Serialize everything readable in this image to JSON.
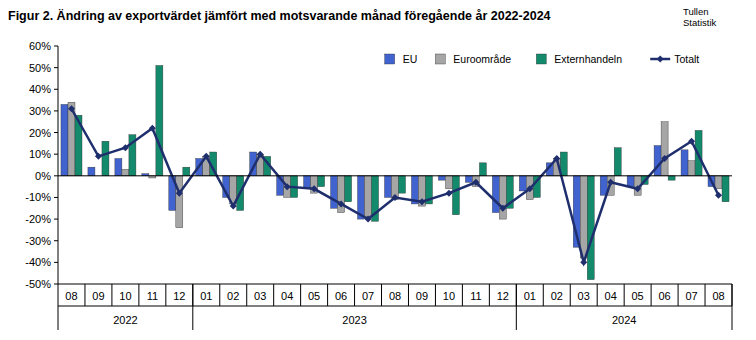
{
  "chart_data": {
    "type": "bar",
    "title": "Figur 2. Ändring av exportvärdet jämfört med motsvarande månad föregående år 2022-2024",
    "source": [
      "Tullen",
      "Statistik"
    ],
    "categories": [
      "08",
      "09",
      "10",
      "11",
      "12",
      "01",
      "02",
      "03",
      "04",
      "05",
      "06",
      "07",
      "08",
      "09",
      "10",
      "11",
      "12",
      "01",
      "02",
      "03",
      "04",
      "05",
      "06",
      "07",
      "08"
    ],
    "groups": [
      {
        "label": "2022",
        "count": 5
      },
      {
        "label": "2023",
        "count": 12
      },
      {
        "label": "2024",
        "count": 8
      }
    ],
    "series": [
      {
        "name": "EU",
        "color": "#4163d0",
        "type": "bar",
        "values": [
          33,
          4,
          8,
          1,
          -16,
          8,
          -10,
          11,
          -9,
          -6,
          -15,
          -20,
          -10,
          -13,
          -2,
          -3,
          -17,
          -7,
          6,
          -33,
          -9,
          -5,
          14,
          12,
          -5
        ]
      },
      {
        "name": "Euroområde",
        "color": "#a6a6a6",
        "type": "bar",
        "values": [
          34,
          0,
          3,
          -1,
          -24,
          9,
          -13,
          10,
          -10,
          -8,
          -17,
          -19,
          -11,
          -14,
          -6,
          -5,
          -20,
          -11,
          8,
          -38,
          -9,
          -9,
          25,
          7,
          -6
        ]
      },
      {
        "name": "Externhandeln",
        "color": "#138a6c",
        "type": "bar",
        "values": [
          28,
          16,
          19,
          51,
          4,
          11,
          -16,
          9,
          -10,
          -5,
          -12,
          -21,
          -8,
          -13,
          -18,
          6,
          -15,
          -10,
          11,
          -48,
          13,
          -4,
          -2,
          21,
          -12
        ]
      },
      {
        "name": "Totalt",
        "color": "#1f2f6e",
        "type": "line",
        "marker": "diamond",
        "values": [
          31,
          9,
          13,
          22,
          -8,
          9,
          -14,
          10,
          -5,
          -6,
          -13,
          -20,
          -10,
          -12,
          -8,
          -3,
          -15,
          -6,
          8,
          -40,
          -3,
          -6,
          8,
          16,
          -9
        ]
      }
    ],
    "ylim": [
      -50,
      60
    ],
    "yticks": [
      {
        "value": -50,
        "label": "-50%"
      },
      {
        "value": -40,
        "label": "-40%"
      },
      {
        "value": -30,
        "label": "-30%"
      },
      {
        "value": -20,
        "label": "-20%"
      },
      {
        "value": -10,
        "label": "-10%"
      },
      {
        "value": 0,
        "label": "0%"
      },
      {
        "value": 10,
        "label": "10%"
      },
      {
        "value": 20,
        "label": "20%"
      },
      {
        "value": 30,
        "label": "30%"
      },
      {
        "value": 40,
        "label": "40%"
      },
      {
        "value": 50,
        "label": "50%"
      },
      {
        "value": 60,
        "label": "60%"
      }
    ],
    "grid": false,
    "legend": "top-right"
  }
}
